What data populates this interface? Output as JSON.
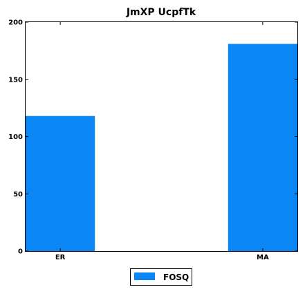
{
  "chart_data": {
    "type": "bar",
    "title": "JmXP  UcpfTk",
    "xlabel": "",
    "ylabel": "",
    "categories": [
      "ER",
      "MA"
    ],
    "series": [
      {
        "name": "FOSQ",
        "values": [
          118,
          181
        ],
        "color": "#0a86f5"
      }
    ],
    "ylim": [
      0,
      200
    ],
    "yticks": [
      0,
      50,
      100,
      150,
      200
    ],
    "grid": false,
    "legend_position": "bottom-center"
  }
}
